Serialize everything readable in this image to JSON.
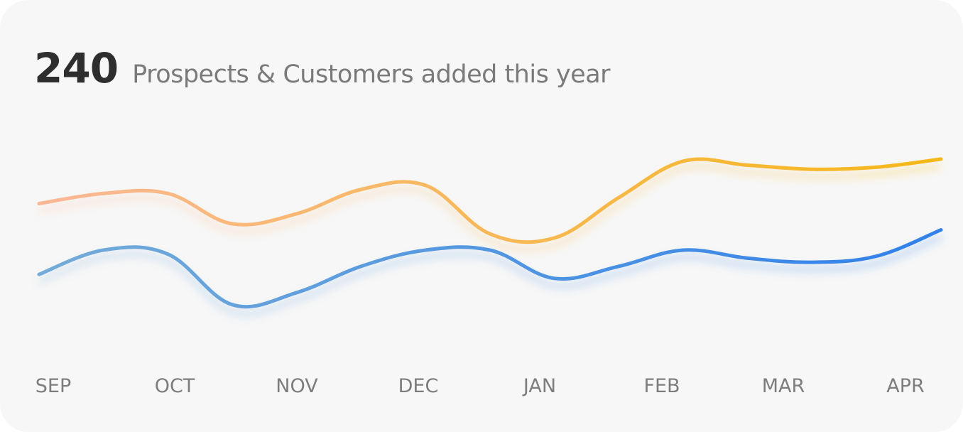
{
  "header": {
    "total": "240",
    "subtitle": "Prospects & Customers added this year"
  },
  "colors": {
    "card_background": "#f7f7f7",
    "orange_start": "#fbb896",
    "orange_end": "#f5b818",
    "blue_start": "#74abd8",
    "blue_end": "#3181ea"
  },
  "chart_data": {
    "type": "line",
    "categories": [
      "SEP",
      "OCT",
      "NOV",
      "DEC",
      "JAN",
      "FEB",
      "MAR",
      "APR"
    ],
    "x": [
      0,
      0.5,
      1,
      1.5,
      2,
      2.5,
      3,
      3.5,
      4,
      4.5,
      5,
      5.5,
      6,
      6.5,
      7
    ],
    "series": [
      {
        "values": [
          75,
          80,
          80,
          65,
          70,
          82,
          84,
          60,
          58,
          78,
          96,
          94,
          92,
          93,
          97
        ],
        "colors": [
          "#fbb896",
          "#f5b818"
        ]
      },
      {
        "values": [
          40,
          52,
          50,
          25,
          31,
          44,
          52,
          52,
          38,
          44,
          52,
          48,
          46,
          49,
          62
        ],
        "colors": [
          "#74abd8",
          "#3181ea"
        ]
      }
    ],
    "title": "Prospects & Customers added this year",
    "xlabel": "",
    "ylabel": "",
    "ylim": [
      0,
      130
    ],
    "grid": false,
    "legend": "none"
  }
}
